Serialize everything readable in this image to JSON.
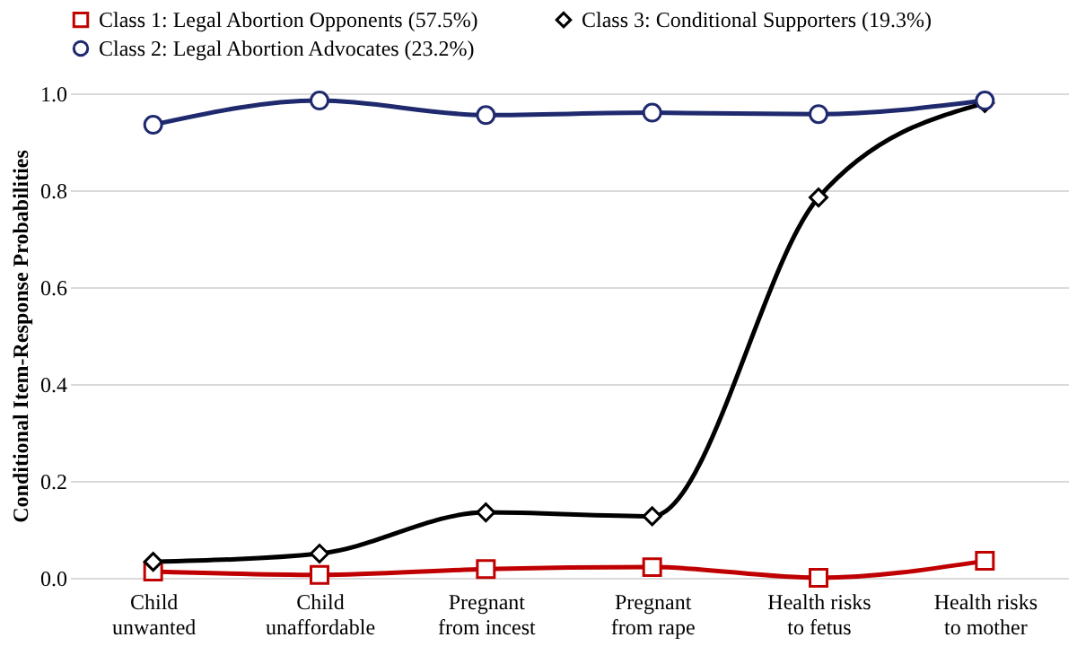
{
  "chart_data": {
    "type": "line",
    "categories": [
      "Child\nunwanted",
      "Child\nunaffordable",
      "Pregnant\nfrom incest",
      "Pregnant\nfrom rape",
      "Health risks\nto fetus",
      "Health risks\nto mother"
    ],
    "ylabel": "Conditional Item-Response Probabilities",
    "ylim": [
      0,
      1.0
    ],
    "yticks": [
      {
        "value": 0,
        "label": "0.0"
      },
      0.2,
      0.4,
      0.6,
      0.8,
      {
        "value": 1,
        "label": "1.0"
      }
    ],
    "grid": "y",
    "legend": "top",
    "series": [
      {
        "name": "Class 1: Legal Abortion Opponents (57.5%)",
        "color": "#c00000",
        "marker": "square",
        "values": [
          0.013,
          0.006,
          0.018,
          0.022,
          0.0,
          0.035
        ]
      },
      {
        "name": "Class 3: Conditional Supporters (19.3%)",
        "color": "#000000",
        "marker": "diamond",
        "values": [
          0.033,
          0.05,
          0.135,
          0.127,
          0.785,
          0.98
        ]
      },
      {
        "name": "Class 2: Legal Abortion Advocates (23.2%)",
        "color": "#1f2a6e",
        "marker": "circle",
        "values": [
          0.935,
          0.985,
          0.955,
          0.96,
          0.957,
          0.985
        ]
      }
    ]
  }
}
